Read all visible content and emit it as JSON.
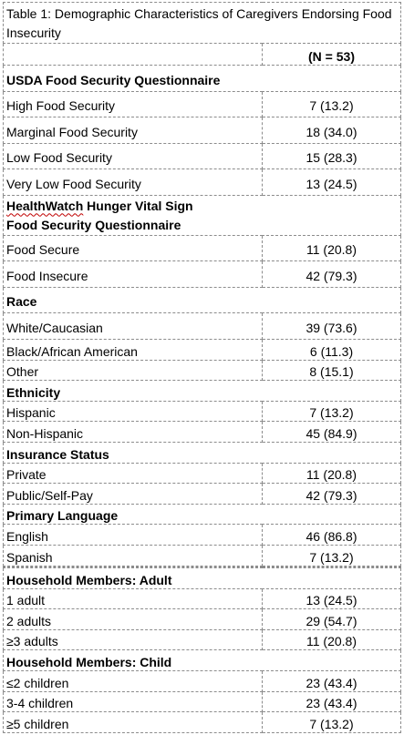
{
  "caption": "Table 1: Demographic Characteristics of Caregivers Endorsing Food Insecurity",
  "n_header": "(N = 53)",
  "usda": {
    "title": "USDA Food Security Questionnaire",
    "rows": [
      {
        "label": "High Food Security",
        "value": "7 (13.2)"
      },
      {
        "label": "Marginal Food Security",
        "value": "18 (34.0)"
      },
      {
        "label": "Low Food Security",
        "value": "15 (28.3)"
      },
      {
        "label": "Very Low Food Security",
        "value": "13 (24.5)"
      }
    ]
  },
  "hvs": {
    "title_brand": "HealthWatch",
    "title_rest": " Hunger Vital Sign",
    "title_line2": "Food Security Questionnaire",
    "rows": [
      {
        "label": "Food Secure",
        "value": "11 (20.8)"
      },
      {
        "label": "Food Insecure",
        "value": "42 (79.3)"
      }
    ]
  },
  "race": {
    "title": "Race",
    "rows": [
      {
        "label": "White/Caucasian",
        "value": "39 (73.6)"
      },
      {
        "label": "Black/African American",
        "value": "6 (11.3)"
      },
      {
        "label": "Other",
        "value": "8 (15.1)"
      }
    ]
  },
  "ethnicity": {
    "title": "Ethnicity",
    "rows": [
      {
        "label": "Hispanic",
        "value": "7 (13.2)"
      },
      {
        "label": "Non-Hispanic",
        "value": "45 (84.9)"
      }
    ]
  },
  "insurance": {
    "title": "Insurance Status",
    "rows": [
      {
        "label": "Private",
        "value": "11 (20.8)"
      },
      {
        "label": "Public/Self-Pay",
        "value": "42 (79.3)"
      }
    ]
  },
  "language": {
    "title": "Primary Language",
    "rows": [
      {
        "label": "English",
        "value": "46 (86.8)"
      },
      {
        "label": "Spanish",
        "value": "7 (13.2)"
      }
    ]
  },
  "adults": {
    "title": "Household Members: Adult",
    "rows": [
      {
        "label": "1 adult",
        "value": "13 (24.5)"
      },
      {
        "label": "2 adults",
        "value": "29 (54.7)"
      },
      {
        "label": "≥3 adults",
        "value": "11 (20.8)"
      }
    ]
  },
  "children": {
    "title": "Household Members: Child",
    "rows": [
      {
        "label": "≤2 children",
        "value": "23 (43.4)"
      },
      {
        "label": "3-4 children",
        "value": "23 (43.4)"
      },
      {
        "label": "≥5 children",
        "value": "7 (13.2)"
      }
    ]
  }
}
